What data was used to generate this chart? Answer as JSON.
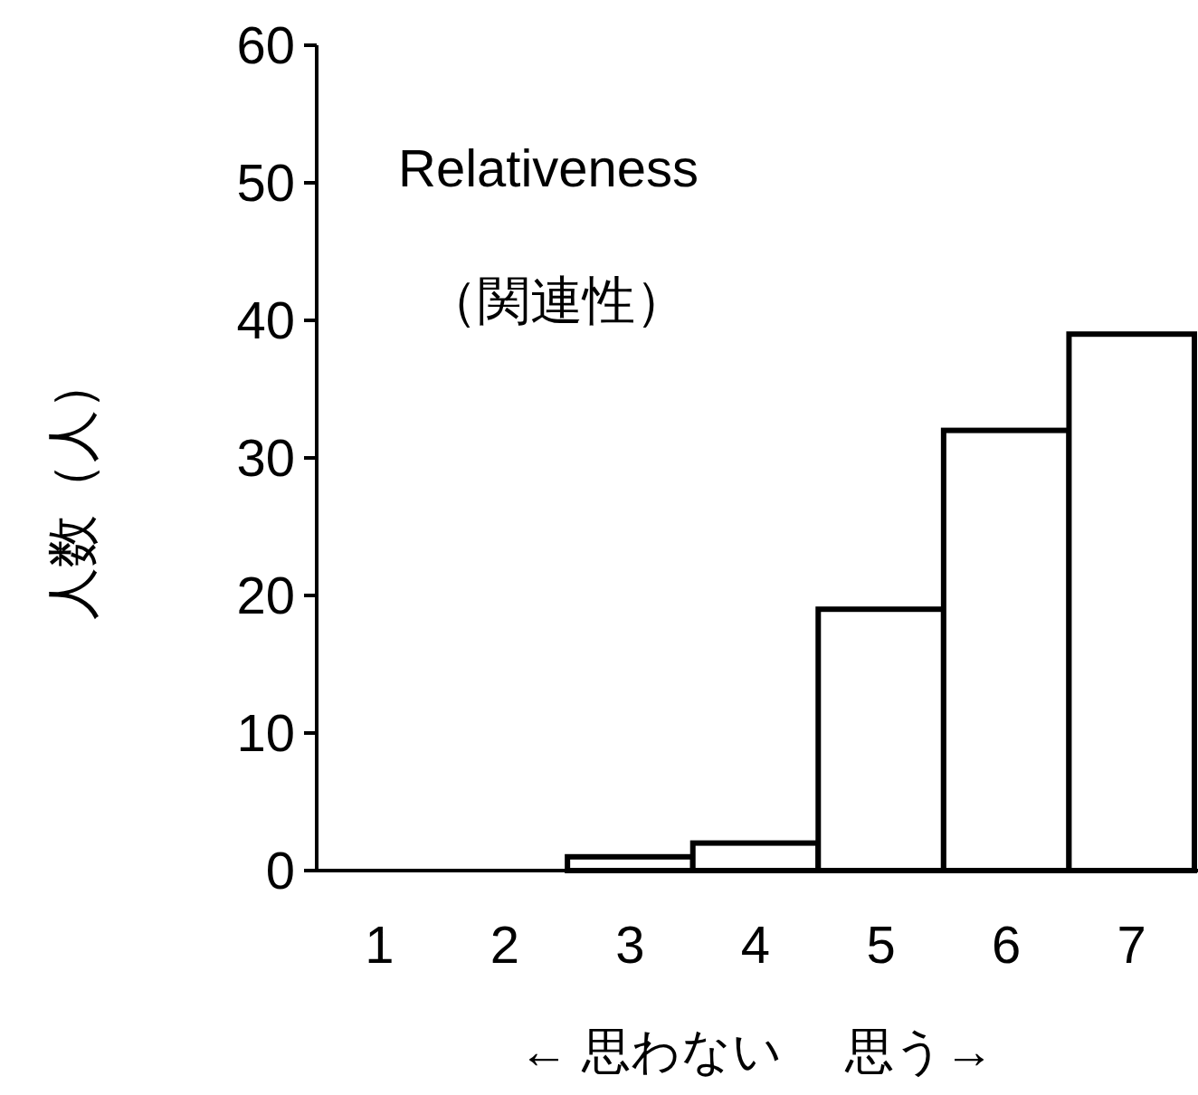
{
  "chart_data": {
    "type": "bar",
    "title": "Relativeness",
    "subtitle": "（関連性）",
    "xlabel": "← 思わない　 思う→",
    "ylabel": "人数（人）",
    "categories": [
      "1",
      "2",
      "3",
      "4",
      "5",
      "6",
      "7"
    ],
    "values": [
      0,
      0,
      1,
      2,
      19,
      32,
      39
    ],
    "color": "#ffffff",
    "ylim": [
      0,
      60
    ],
    "yticks": [
      0,
      10,
      20,
      30,
      40,
      50,
      60
    ]
  }
}
